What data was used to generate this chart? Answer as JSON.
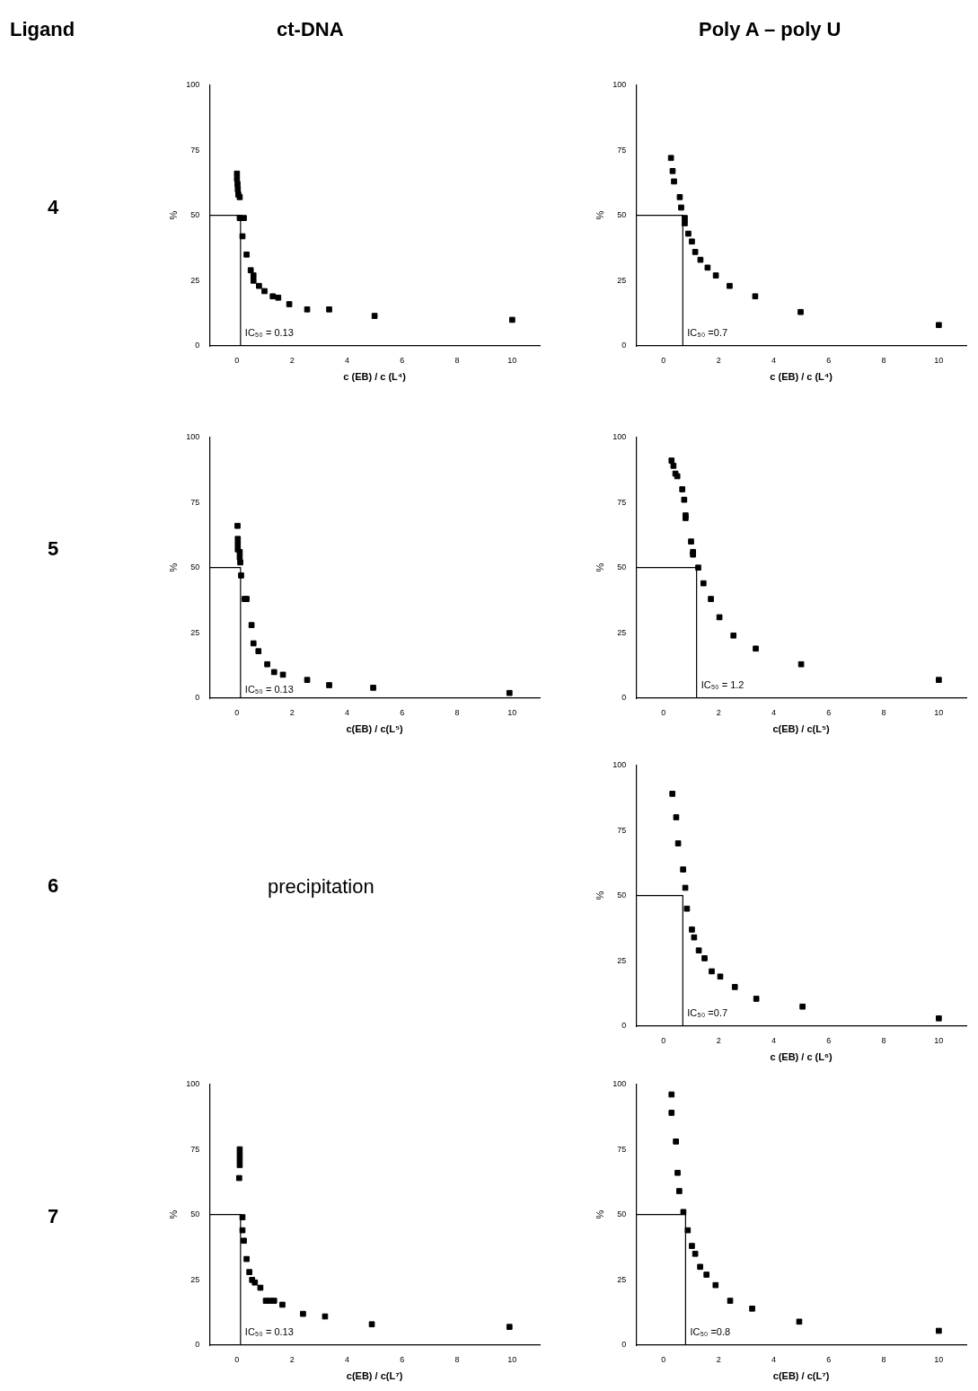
{
  "chart_data": [
    {
      "type": "other",
      "annotations": [
        "Ligand",
        "ct-DNA",
        "Poly A – poly U"
      ]
    },
    {
      "type": "other",
      "annotations": [
        "4"
      ]
    },
    {
      "type": "other",
      "annotations": [
        "5"
      ]
    },
    {
      "type": "other",
      "annotations": [
        "6",
        "precipitation"
      ]
    },
    {
      "type": "other",
      "annotations": [
        "7"
      ]
    },
    {
      "type": "scatter",
      "xlabel": "c (EB) / c (L⁴)",
      "ylabel": "%",
      "xlim": [
        -1,
        11
      ],
      "ylim": [
        0,
        100
      ],
      "xticks": [
        0,
        2,
        4,
        6,
        8,
        10
      ],
      "yticks": [
        0,
        25,
        50,
        75,
        100
      ],
      "grid": false,
      "legend": false,
      "marker": "square",
      "annotations": [
        {
          "text": "IC₅₀ = 0.13",
          "x": 0.13,
          "y": 5
        }
      ],
      "series": [
        {
          "color": "#000000",
          "x": [
            0,
            0,
            0.02,
            0.03,
            0.05,
            0.1,
            0.1,
            0.25,
            0.2,
            0.35,
            0.5,
            0.6,
            0.6,
            0.8,
            1.0,
            1.3,
            1.5,
            1.9,
            2.55,
            3.35,
            5,
            10
          ],
          "values": [
            66,
            64,
            62,
            60,
            58,
            57,
            49,
            49,
            42,
            35,
            29,
            27,
            25,
            23,
            21,
            19,
            18.5,
            16,
            14,
            14,
            11.5,
            10
          ]
        },
        {
          "type": "line",
          "color": "#000000",
          "marker": "none",
          "x": [
            -1,
            0.13,
            0.13
          ],
          "values": [
            50,
            50,
            0
          ]
        }
      ]
    },
    {
      "type": "scatter",
      "xlabel": "c (EB) / c (L⁴)",
      "ylabel": "%",
      "xlim": [
        -1,
        11
      ],
      "ylim": [
        0,
        100
      ],
      "xticks": [
        0,
        2,
        4,
        6,
        8,
        10
      ],
      "yticks": [
        0,
        25,
        50,
        75,
        100
      ],
      "grid": false,
      "legend": false,
      "marker": "square",
      "annotations": [
        {
          "text": "IC₅₀ =0.7",
          "x": 0.7,
          "y": 5
        }
      ],
      "series": [
        {
          "color": "#000000",
          "x": [
            0.27,
            0.33,
            0.38,
            0.59,
            0.64,
            0.77,
            0.77,
            0.9,
            1.03,
            1.15,
            1.34,
            1.6,
            1.9,
            2.4,
            3.33,
            4.98,
            10
          ],
          "values": [
            72,
            67,
            63,
            57,
            53,
            49,
            47,
            43,
            40,
            36,
            33,
            30,
            27,
            23,
            19,
            13,
            8
          ]
        },
        {
          "type": "line",
          "color": "#000000",
          "marker": "none",
          "x": [
            -1,
            0.7,
            0.7
          ],
          "values": [
            50,
            50,
            0
          ]
        }
      ]
    },
    {
      "type": "scatter",
      "xlabel": "c(EB) / c(L⁵)",
      "ylabel": "%",
      "xlim": [
        -1,
        11
      ],
      "ylim": [
        0,
        100
      ],
      "xticks": [
        0,
        2,
        4,
        6,
        8,
        10
      ],
      "yticks": [
        0,
        25,
        50,
        75,
        100
      ],
      "grid": false,
      "legend": false,
      "marker": "square",
      "annotations": [
        {
          "text": "IC₅₀ = 0.13",
          "x": 0.13,
          "y": 3
        }
      ],
      "series": [
        {
          "color": "#000000",
          "x": [
            0.02,
            0.03,
            0.03,
            0.03,
            0.1,
            0.1,
            0.12,
            0.15,
            0.28,
            0.35,
            0.53,
            0.6,
            0.78,
            1.1,
            1.35,
            1.67,
            2.55,
            3.35,
            4.95,
            9.9
          ],
          "values": [
            66,
            61,
            59,
            57,
            56,
            54,
            52,
            47,
            38,
            38,
            28,
            21,
            18,
            13,
            10,
            9,
            7,
            5,
            4,
            2
          ]
        },
        {
          "type": "line",
          "color": "#000000",
          "marker": "none",
          "x": [
            -1,
            0.13,
            0.13
          ],
          "values": [
            50,
            50,
            0
          ]
        }
      ]
    },
    {
      "type": "scatter",
      "xlabel": "c(EB) / c(L⁵)",
      "ylabel": "%",
      "xlim": [
        -1,
        11
      ],
      "ylim": [
        0,
        100
      ],
      "xticks": [
        0,
        2,
        4,
        6,
        8,
        10
      ],
      "yticks": [
        0,
        25,
        50,
        75,
        100
      ],
      "grid": false,
      "legend": false,
      "marker": "square",
      "annotations": [
        {
          "text": "IC₅₀ = 1.2",
          "x": 1.2,
          "y": 5
        }
      ],
      "series": [
        {
          "color": "#000000",
          "x": [
            0.29,
            0.36,
            0.43,
            0.5,
            0.68,
            0.75,
            0.8,
            0.8,
            1.0,
            1.07,
            1.07,
            1.26,
            1.45,
            1.72,
            2.03,
            2.54,
            3.35,
            5.0,
            10
          ],
          "values": [
            91,
            89,
            86,
            85,
            80,
            76,
            70,
            69,
            60,
            56,
            55,
            50,
            44,
            38,
            31,
            24,
            19,
            13,
            7
          ]
        },
        {
          "type": "line",
          "color": "#000000",
          "marker": "none",
          "x": [
            -1,
            1.2,
            1.2
          ],
          "values": [
            50,
            50,
            0
          ]
        }
      ]
    },
    {
      "type": "scatter",
      "xlabel": "c (EB) / c (L⁶)",
      "ylabel": "%",
      "xlim": [
        -1,
        11
      ],
      "ylim": [
        0,
        100
      ],
      "xticks": [
        0,
        2,
        4,
        6,
        8,
        10
      ],
      "yticks": [
        0,
        25,
        50,
        75,
        100
      ],
      "grid": false,
      "legend": false,
      "marker": "square",
      "annotations": [
        {
          "text": "IC₅₀ =0.7",
          "x": 0.7,
          "y": 5
        }
      ],
      "series": [
        {
          "color": "#000000",
          "x": [
            0.32,
            0.46,
            0.53,
            0.71,
            0.79,
            0.85,
            1.03,
            1.11,
            1.28,
            1.49,
            1.75,
            2.06,
            2.59,
            3.37,
            5.05,
            10
          ],
          "values": [
            89,
            80,
            70,
            60,
            53,
            45,
            37,
            34,
            29,
            26,
            21,
            19,
            15,
            10.5,
            7.5,
            3
          ]
        },
        {
          "type": "line",
          "color": "#000000",
          "marker": "none",
          "x": [
            -1,
            0.7,
            0.7
          ],
          "values": [
            50,
            50,
            0
          ]
        }
      ]
    },
    {
      "type": "scatter",
      "xlabel": "c(EB) / c(L⁷)",
      "ylabel": "%",
      "xlim": [
        -1,
        11
      ],
      "ylim": [
        0,
        100
      ],
      "xticks": [
        0,
        2,
        4,
        6,
        8,
        10
      ],
      "yticks": [
        0,
        25,
        50,
        75,
        100
      ],
      "grid": false,
      "legend": false,
      "marker": "square",
      "annotations": [
        {
          "text": "IC₅₀ = 0.13",
          "x": 0.13,
          "y": 5
        }
      ],
      "series": [
        {
          "color": "#000000",
          "x": [
            0.1,
            0.1,
            0.1,
            0.1,
            0.08,
            0.2,
            0.2,
            0.25,
            0.35,
            0.45,
            0.55,
            0.65,
            0.85,
            1.05,
            1.2,
            1.35,
            1.65,
            2.4,
            3.2,
            4.9,
            9.9
          ],
          "values": [
            75,
            73,
            71,
            69,
            64,
            49,
            44,
            40,
            33,
            28,
            25,
            24,
            22,
            17,
            17,
            17,
            15.5,
            12,
            11,
            8,
            7
          ]
        },
        {
          "type": "line",
          "color": "#000000",
          "marker": "none",
          "x": [
            -1,
            0.13,
            0.13
          ],
          "values": [
            50,
            50,
            0
          ]
        }
      ]
    },
    {
      "type": "scatter",
      "xlabel": "c(EB) / c(L⁷)",
      "ylabel": "%",
      "xlim": [
        -1,
        11
      ],
      "ylim": [
        0,
        100
      ],
      "xticks": [
        0,
        2,
        4,
        6,
        8,
        10
      ],
      "yticks": [
        0,
        25,
        50,
        75,
        100
      ],
      "grid": false,
      "legend": false,
      "marker": "square",
      "annotations": [
        {
          "text": "IC₅₀ =0.8",
          "x": 0.8,
          "y": 5
        }
      ],
      "series": [
        {
          "color": "#000000",
          "x": [
            0.29,
            0.29,
            0.45,
            0.51,
            0.57,
            0.72,
            0.88,
            1.03,
            1.15,
            1.33,
            1.56,
            1.89,
            2.42,
            3.22,
            4.93,
            10
          ],
          "values": [
            96,
            89,
            78,
            66,
            59,
            51,
            44,
            38,
            35,
            30,
            27,
            23,
            17,
            14,
            9,
            5.5
          ]
        },
        {
          "type": "line",
          "color": "#000000",
          "marker": "none",
          "x": [
            -1,
            0.8,
            0.8
          ],
          "values": [
            50,
            50,
            0
          ]
        }
      ]
    }
  ]
}
